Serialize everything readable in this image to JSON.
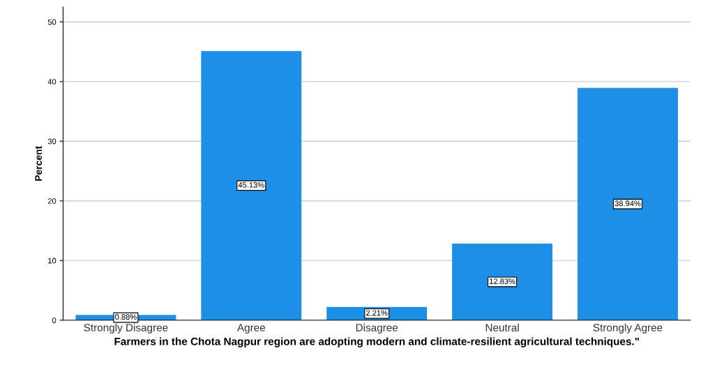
{
  "chart_data": {
    "type": "bar",
    "xlabel": "Farmers in the Chota Nagpur region are adopting modern and climate-resilient agricultural techniques.\"",
    "ylabel": "Percent",
    "categories": [
      "Strongly Disagree",
      "Agree",
      "Disagree",
      "Neutral",
      "Strongly Agree"
    ],
    "values": [
      0.88,
      45.13,
      2.21,
      12.83,
      38.94
    ],
    "value_labels": [
      "0.88%",
      "45.13%",
      "2.21%",
      "12.83%",
      "38.94%"
    ],
    "color": "#1e8fe6",
    "ylim": [
      0,
      52.5
    ],
    "yticks": [
      0,
      10,
      20,
      30,
      40,
      50
    ],
    "grid": "y"
  }
}
